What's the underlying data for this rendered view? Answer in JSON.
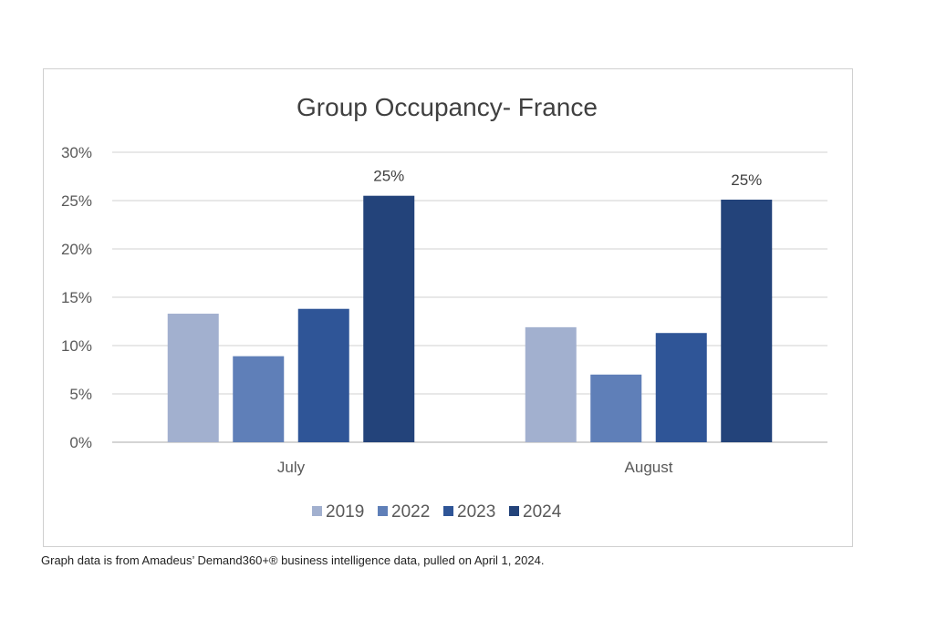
{
  "chart_data": {
    "type": "bar",
    "title": "Group Occupancy- France",
    "xlabel": "",
    "ylabel": "",
    "categories": [
      "July",
      "August"
    ],
    "series": [
      {
        "name": "2019",
        "values": [
          13.3,
          11.9
        ],
        "color": "#A2B0CF"
      },
      {
        "name": "2022",
        "values": [
          8.9,
          7.0
        ],
        "color": "#5F7FB8"
      },
      {
        "name": "2023",
        "values": [
          13.8,
          11.3
        ],
        "color": "#2F5597"
      },
      {
        "name": "2024",
        "values": [
          25.5,
          25.1
        ],
        "color": "#23437A"
      }
    ],
    "data_labels": [
      {
        "series": "2024",
        "category": "July",
        "text": "25%"
      },
      {
        "series": "2024",
        "category": "August",
        "text": "25%"
      }
    ],
    "ylim": [
      0,
      30
    ],
    "yticks": [
      0,
      5,
      10,
      15,
      20,
      25,
      30
    ],
    "ytick_labels": [
      "0%",
      "5%",
      "10%",
      "15%",
      "20%",
      "25%",
      "30%"
    ],
    "grid": true,
    "legend_position": "bottom"
  },
  "footnote": "Graph data is from Amadeus’ Demand360+® business intelligence data, pulled on April 1, 2024."
}
